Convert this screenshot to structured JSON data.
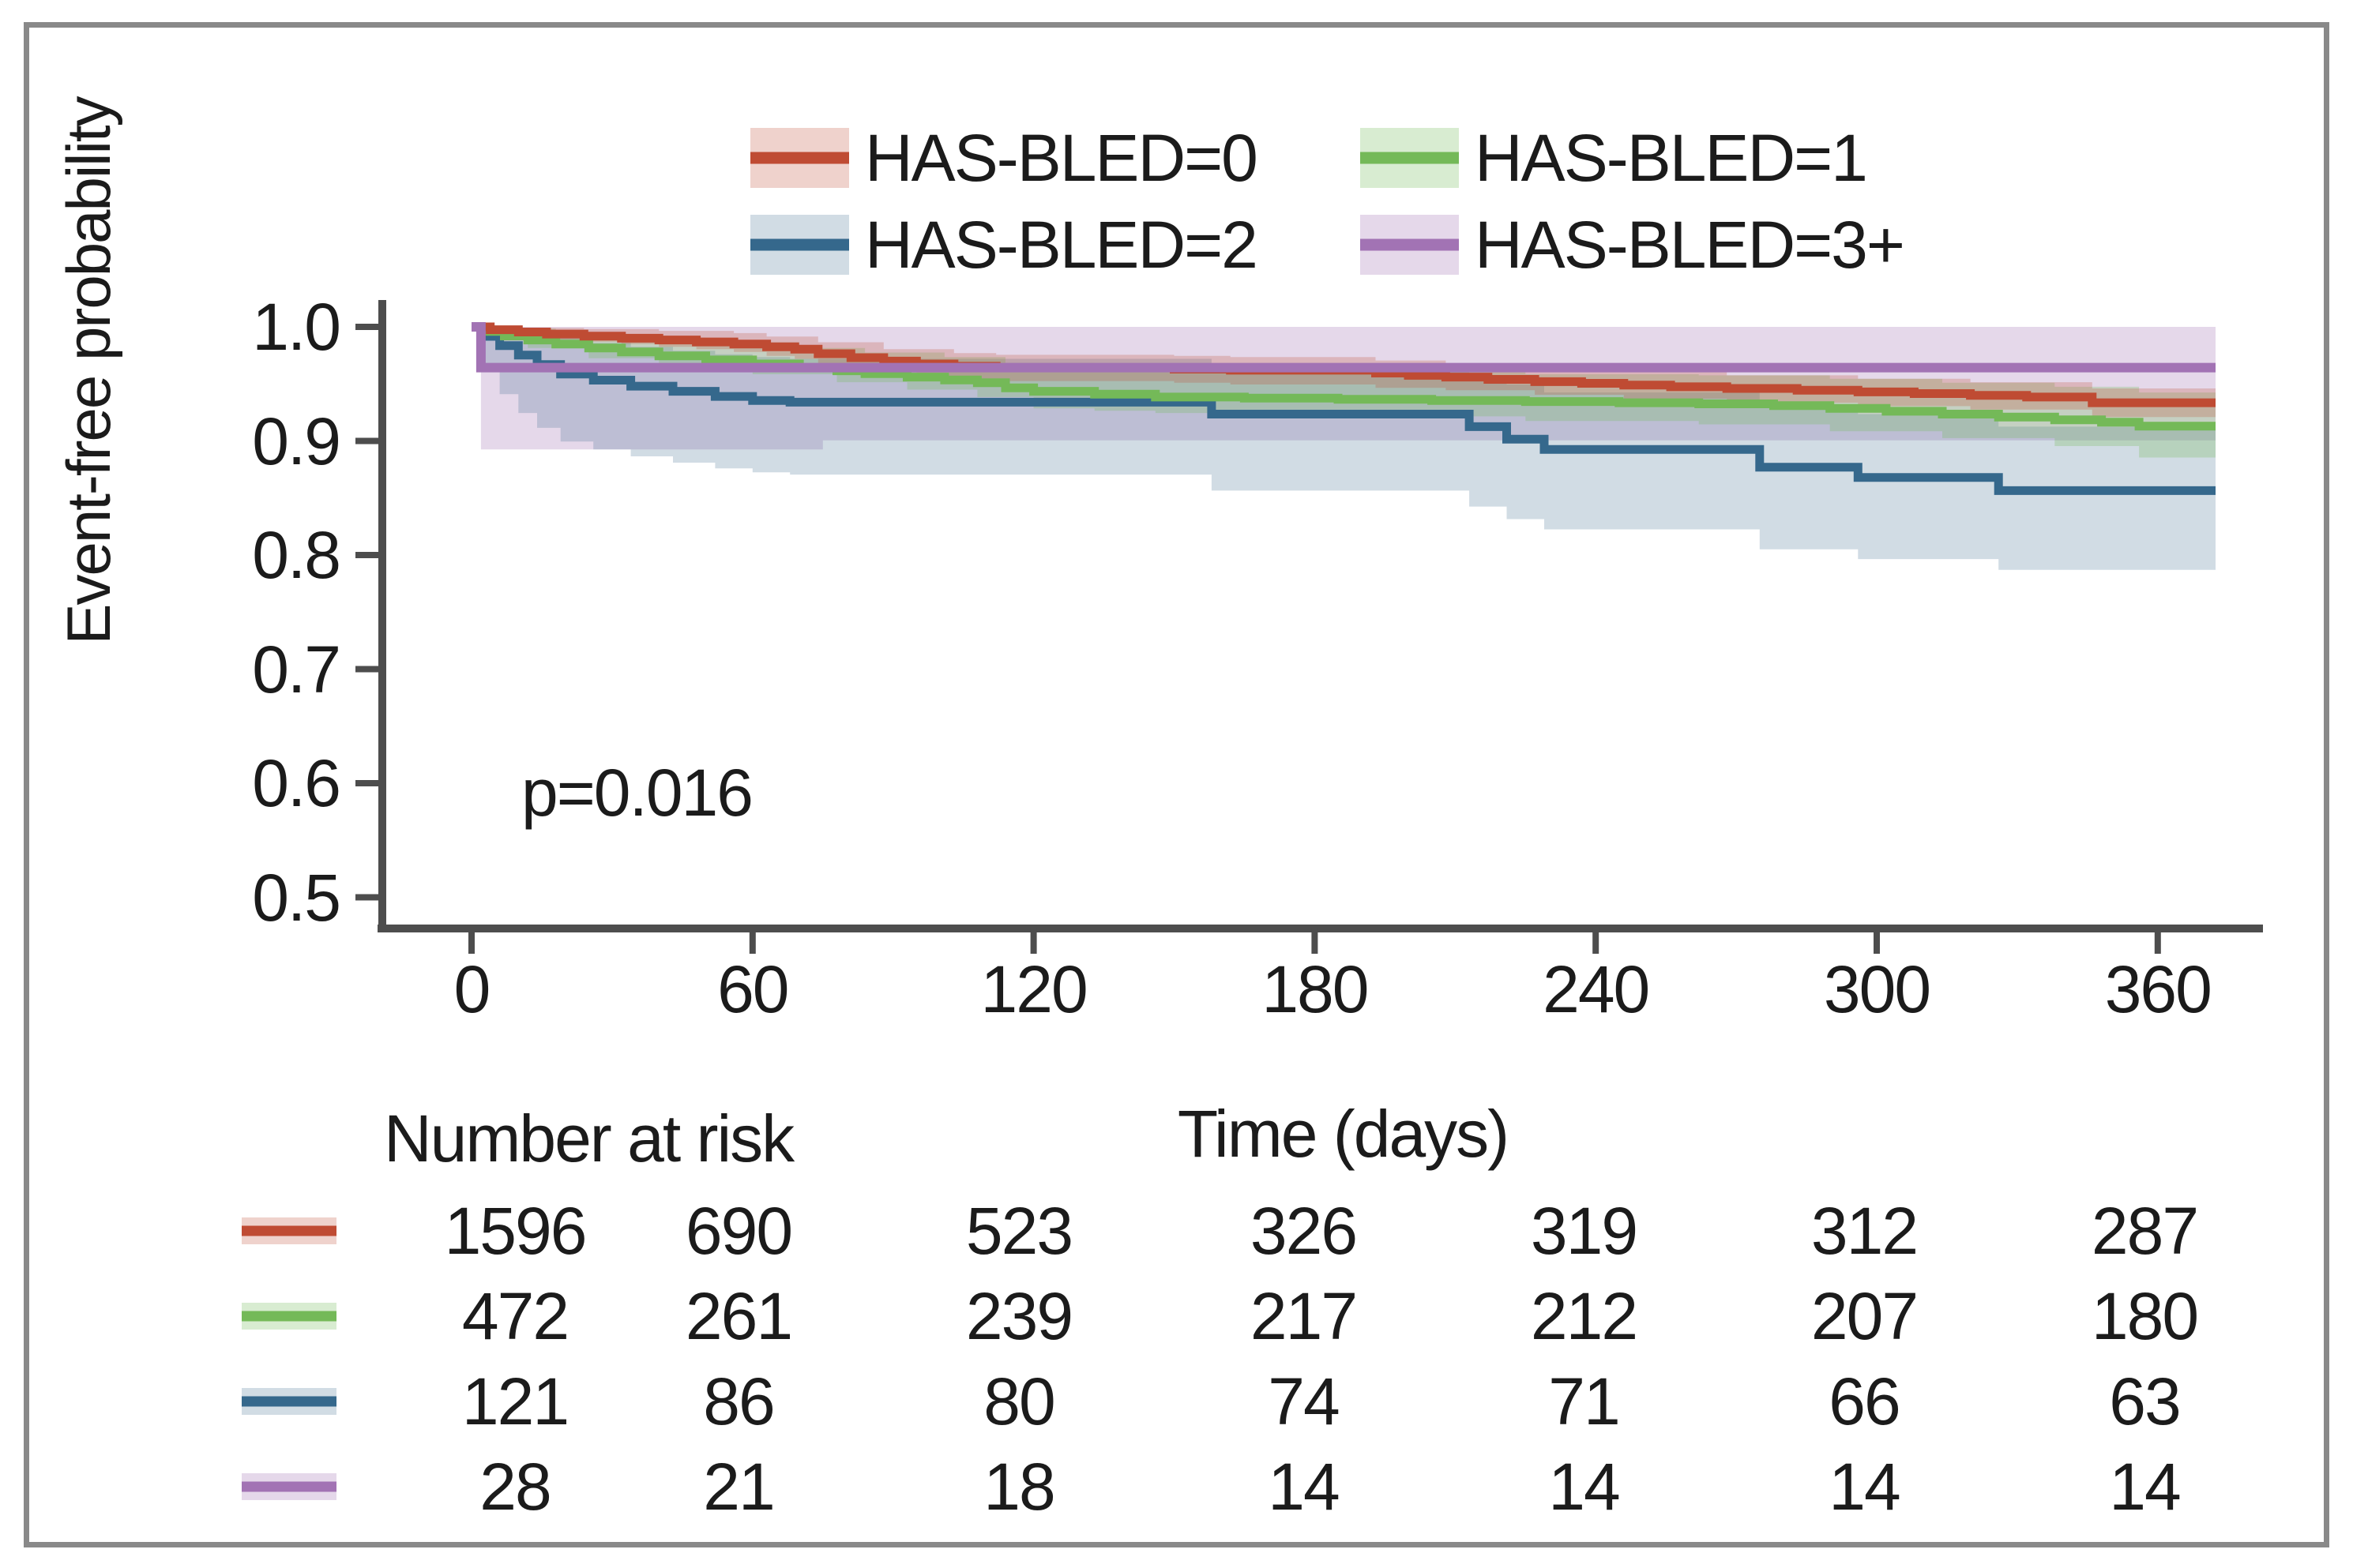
{
  "figure": {
    "y_axis_label": "Event-free probability",
    "x_axis_label": "Time (days)",
    "p_value_label": "p=0.016",
    "risk_table_header": "Number at risk"
  },
  "axes": {
    "y_tick_labels": [
      "1.0",
      "0.9",
      "0.8",
      "0.7",
      "0.6",
      "0.5"
    ],
    "x_tick_labels": [
      "0",
      "60",
      "120",
      "180",
      "240",
      "300",
      "360"
    ],
    "axis_color": "#4d4d4d",
    "text_color": "#1b1b1b"
  },
  "chart_data": {
    "type": "line",
    "subtype": "kaplan-meier-step",
    "title": "",
    "xlabel": "Time (days)",
    "ylabel": "Event-free probability",
    "xlim": [
      0,
      360
    ],
    "ylim": [
      0.5,
      1.0
    ],
    "grid": false,
    "legend_position": "top-center",
    "p_value": "p=0.016",
    "at_risk_header": "Number at risk",
    "at_risk_times": [
      0,
      60,
      120,
      180,
      240,
      300,
      360
    ],
    "series": [
      {
        "name": "HAS-BLED=0",
        "label": "HAS-BLED=0",
        "color": "#bf4b33",
        "band_color": "rgba(191,75,51,0.25)",
        "at_risk": [
          1596,
          690,
          523,
          326,
          319,
          312,
          287
        ],
        "line": [
          [
            0,
            1.0
          ],
          [
            4,
            0.9975
          ],
          [
            10,
            0.9955
          ],
          [
            16,
            0.9937
          ],
          [
            24,
            0.9918
          ],
          [
            32,
            0.99
          ],
          [
            40,
            0.9885
          ],
          [
            48,
            0.9868
          ],
          [
            56,
            0.985
          ],
          [
            63,
            0.9825
          ],
          [
            69,
            0.9805
          ],
          [
            74,
            0.9765
          ],
          [
            81,
            0.973
          ],
          [
            88,
            0.97
          ],
          [
            95,
            0.9675
          ],
          [
            103,
            0.9655
          ],
          [
            112,
            0.964
          ],
          [
            150,
            0.963
          ],
          [
            162,
            0.962
          ],
          [
            193,
            0.9595
          ],
          [
            200,
            0.9575
          ],
          [
            208,
            0.956
          ],
          [
            217,
            0.954
          ],
          [
            227,
            0.952
          ],
          [
            237,
            0.9505
          ],
          [
            246,
            0.949
          ],
          [
            256,
            0.9475
          ],
          [
            268,
            0.946
          ],
          [
            283,
            0.9445
          ],
          [
            296,
            0.943
          ],
          [
            308,
            0.9415
          ],
          [
            320,
            0.94
          ],
          [
            332,
            0.9385
          ],
          [
            346,
            0.9335
          ]
        ],
        "ci_upper": [
          [
            0,
            1.0
          ],
          [
            10,
            0.999
          ],
          [
            24,
            0.998
          ],
          [
            40,
            0.9965
          ],
          [
            56,
            0.9945
          ],
          [
            63,
            0.9915
          ],
          [
            74,
            0.9865
          ],
          [
            88,
            0.9805
          ],
          [
            103,
            0.977
          ],
          [
            112,
            0.9755
          ],
          [
            150,
            0.9745
          ],
          [
            162,
            0.9735
          ],
          [
            193,
            0.9705
          ],
          [
            208,
            0.9675
          ],
          [
            227,
            0.9635
          ],
          [
            246,
            0.9605
          ],
          [
            268,
            0.9575
          ],
          [
            296,
            0.9545
          ],
          [
            320,
            0.9515
          ],
          [
            346,
            0.946
          ]
        ],
        "ci_lower": [
          [
            0,
            1.0
          ],
          [
            4,
            0.9945
          ],
          [
            10,
            0.9915
          ],
          [
            16,
            0.989
          ],
          [
            24,
            0.987
          ],
          [
            32,
            0.985
          ],
          [
            40,
            0.9825
          ],
          [
            48,
            0.9805
          ],
          [
            56,
            0.978
          ],
          [
            63,
            0.9745
          ],
          [
            69,
            0.972
          ],
          [
            74,
            0.9675
          ],
          [
            81,
            0.9635
          ],
          [
            88,
            0.96
          ],
          [
            95,
            0.957
          ],
          [
            103,
            0.9545
          ],
          [
            112,
            0.9525
          ],
          [
            150,
            0.951
          ],
          [
            162,
            0.9495
          ],
          [
            193,
            0.9465
          ],
          [
            208,
            0.9445
          ],
          [
            227,
            0.9405
          ],
          [
            246,
            0.937
          ],
          [
            268,
            0.9335
          ],
          [
            296,
            0.9305
          ],
          [
            320,
            0.9275
          ],
          [
            346,
            0.921
          ]
        ]
      },
      {
        "name": "HAS-BLED=1",
        "label": "HAS-BLED=1",
        "color": "#74b958",
        "band_color": "rgba(116,185,88,0.28)",
        "at_risk": [
          472,
          261,
          239,
          217,
          212,
          207,
          180
        ],
        "line": [
          [
            0,
            1.0
          ],
          [
            3,
            0.996
          ],
          [
            7,
            0.992
          ],
          [
            12,
            0.9885
          ],
          [
            18,
            0.985
          ],
          [
            25,
            0.9815
          ],
          [
            32,
            0.978
          ],
          [
            40,
            0.9745
          ],
          [
            50,
            0.971
          ],
          [
            60,
            0.9675
          ],
          [
            70,
            0.964
          ],
          [
            78,
            0.9615
          ],
          [
            84,
            0.959
          ],
          [
            93,
            0.956
          ],
          [
            101,
            0.9535
          ],
          [
            108,
            0.951
          ],
          [
            114,
            0.9465
          ],
          [
            120,
            0.9435
          ],
          [
            133,
            0.941
          ],
          [
            146,
            0.9385
          ],
          [
            165,
            0.9375
          ],
          [
            185,
            0.9365
          ],
          [
            205,
            0.9355
          ],
          [
            225,
            0.9345
          ],
          [
            245,
            0.9335
          ],
          [
            262,
            0.9325
          ],
          [
            278,
            0.931
          ],
          [
            290,
            0.9285
          ],
          [
            302,
            0.926
          ],
          [
            314,
            0.9235
          ],
          [
            326,
            0.921
          ],
          [
            338,
            0.9185
          ],
          [
            348,
            0.9165
          ],
          [
            356,
            0.913
          ]
        ],
        "ci_upper": [
          [
            0,
            1.0
          ],
          [
            7,
            0.9985
          ],
          [
            18,
            0.995
          ],
          [
            32,
            0.9905
          ],
          [
            50,
            0.9865
          ],
          [
            70,
            0.9815
          ],
          [
            84,
            0.9775
          ],
          [
            101,
            0.9735
          ],
          [
            114,
            0.9685
          ],
          [
            133,
            0.9645
          ],
          [
            146,
            0.9625
          ],
          [
            185,
            0.9605
          ],
          [
            225,
            0.9585
          ],
          [
            262,
            0.9575
          ],
          [
            290,
            0.9545
          ],
          [
            314,
            0.951
          ],
          [
            338,
            0.9475
          ],
          [
            356,
            0.9425
          ]
        ],
        "ci_lower": [
          [
            0,
            1.0
          ],
          [
            3,
            0.9905
          ],
          [
            12,
            0.9815
          ],
          [
            25,
            0.9725
          ],
          [
            40,
            0.9655
          ],
          [
            60,
            0.9585
          ],
          [
            78,
            0.9515
          ],
          [
            93,
            0.945
          ],
          [
            108,
            0.9385
          ],
          [
            120,
            0.9285
          ],
          [
            133,
            0.9265
          ],
          [
            146,
            0.9245
          ],
          [
            185,
            0.9215
          ],
          [
            225,
            0.9175
          ],
          [
            262,
            0.9145
          ],
          [
            290,
            0.9085
          ],
          [
            314,
            0.9025
          ],
          [
            338,
            0.8955
          ],
          [
            356,
            0.8855
          ]
        ]
      },
      {
        "name": "HAS-BLED=2",
        "label": "HAS-BLED=2",
        "color": "#35688c",
        "band_color": "rgba(63,110,142,0.24)",
        "at_risk": [
          121,
          86,
          80,
          74,
          71,
          66,
          63
        ],
        "line": [
          [
            0,
            1.0
          ],
          [
            2,
            0.9917
          ],
          [
            6,
            0.9835
          ],
          [
            10,
            0.9752
          ],
          [
            14,
            0.967
          ],
          [
            19,
            0.9587
          ],
          [
            26,
            0.9533
          ],
          [
            34,
            0.948
          ],
          [
            43,
            0.9435
          ],
          [
            52,
            0.939
          ],
          [
            60,
            0.9355
          ],
          [
            68,
            0.934
          ],
          [
            158,
            0.9235
          ],
          [
            213,
            0.9125
          ],
          [
            221,
            0.9015
          ],
          [
            229,
            0.8925
          ],
          [
            275,
            0.877
          ],
          [
            296,
            0.868
          ],
          [
            326,
            0.8565
          ]
        ],
        "ci_upper": [
          [
            0,
            1.0
          ],
          [
            6,
            0.999
          ],
          [
            14,
            0.9945
          ],
          [
            19,
            0.99
          ],
          [
            26,
            0.986
          ],
          [
            34,
            0.9825
          ],
          [
            43,
            0.979
          ],
          [
            52,
            0.976
          ],
          [
            60,
            0.9735
          ],
          [
            68,
            0.972
          ],
          [
            158,
            0.9645
          ],
          [
            213,
            0.9575
          ],
          [
            221,
            0.9495
          ],
          [
            229,
            0.9425
          ],
          [
            275,
            0.9305
          ],
          [
            296,
            0.9235
          ],
          [
            326,
            0.9125
          ]
        ],
        "ci_lower": [
          [
            0,
            1.0
          ],
          [
            2,
            0.9605
          ],
          [
            6,
            0.941
          ],
          [
            10,
            0.9245
          ],
          [
            14,
            0.9115
          ],
          [
            19,
            0.8995
          ],
          [
            26,
            0.8925
          ],
          [
            34,
            0.8865
          ],
          [
            43,
            0.881
          ],
          [
            52,
            0.876
          ],
          [
            60,
            0.8725
          ],
          [
            68,
            0.8705
          ],
          [
            158,
            0.8565
          ],
          [
            213,
            0.8425
          ],
          [
            221,
            0.8315
          ],
          [
            229,
            0.8225
          ],
          [
            275,
            0.805
          ],
          [
            296,
            0.7965
          ],
          [
            326,
            0.787
          ]
        ]
      },
      {
        "name": "HAS-BLED=3+",
        "label": "HAS-BLED=3+",
        "color": "#a273b4",
        "band_color": "rgba(162,115,180,0.28)",
        "at_risk": [
          28,
          21,
          18,
          14,
          14,
          14,
          14
        ],
        "line": [
          [
            0,
            1.0
          ],
          [
            2,
            0.9643
          ]
        ],
        "ci_upper": [
          [
            0,
            1.0
          ]
        ],
        "ci_lower": [
          [
            0,
            1.0
          ],
          [
            2,
            0.8925
          ],
          [
            75,
            0.9005
          ]
        ]
      }
    ]
  }
}
